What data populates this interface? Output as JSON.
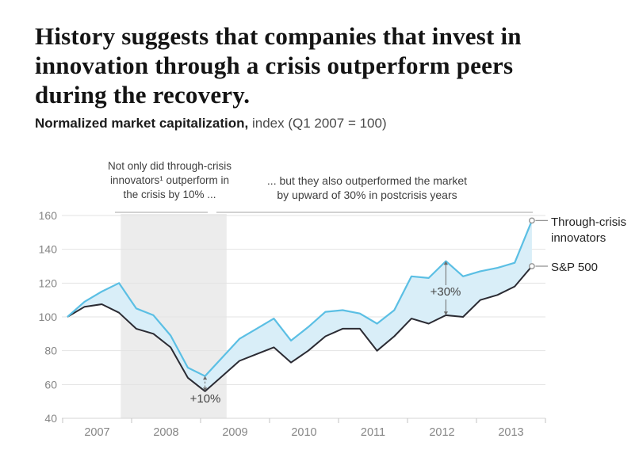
{
  "header": {
    "title_lines": [
      "History suggests that companies that invest in",
      "innovation through a crisis outperform peers",
      "during the recovery."
    ],
    "subtitle_bold": "Normalized market capitalization,",
    "subtitle_rest": " index (Q1 2007 = 100)"
  },
  "annotations": {
    "crisis": {
      "lines": [
        "Not only did through-crisis",
        "innovators¹ outperform in",
        "the crisis by 10% ..."
      ]
    },
    "postcrisis": {
      "lines": [
        "... but they also outperformed the market",
        "by upward of 30% in postcrisis years"
      ]
    }
  },
  "chart_data": {
    "type": "area",
    "title": "Normalized market capitalization",
    "unit": "index (Q1 2007 = 100)",
    "grid": true,
    "y_ticks": [
      40,
      60,
      80,
      100,
      120,
      140,
      160
    ],
    "ylim": [
      40,
      165
    ],
    "x_year_ticks": [
      "2007",
      "2008",
      "2009",
      "2010",
      "2011",
      "2012",
      "2013"
    ],
    "x_quarters": [
      "Q1 2007",
      "Q2 2007",
      "Q3 2007",
      "Q4 2007",
      "Q1 2008",
      "Q2 2008",
      "Q3 2008",
      "Q4 2008",
      "Q1 2009",
      "Q2 2009",
      "Q3 2009",
      "Q4 2009",
      "Q1 2010",
      "Q2 2010",
      "Q3 2010",
      "Q4 2010",
      "Q1 2011",
      "Q2 2011",
      "Q3 2011",
      "Q4 2011",
      "Q1 2012",
      "Q2 2012",
      "Q3 2012",
      "Q4 2012",
      "Q1 2013",
      "Q2 2013",
      "Q3 2013",
      "Q4 2013"
    ],
    "series": [
      {
        "name": "Through-crisis innovators",
        "color": "#5bbfe4",
        "values": [
          100,
          109,
          115,
          120,
          105,
          101,
          89,
          70,
          65,
          76,
          87,
          93,
          99,
          86,
          94,
          103,
          104,
          102,
          96,
          104,
          124,
          123,
          133,
          124,
          127,
          129,
          132,
          157
        ]
      },
      {
        "name": "S&P 500",
        "color": "#2b2b33",
        "values": [
          100,
          106,
          107.5,
          102.5,
          93,
          90,
          82,
          64,
          56,
          65,
          74,
          78,
          82,
          73,
          80,
          88.5,
          93,
          93,
          80,
          88.5,
          99,
          96,
          101,
          100,
          110,
          113,
          118,
          130
        ]
      }
    ],
    "area_fill": "#d9eef8",
    "crisis_band": {
      "from_quarter": "Q4 2007",
      "to_quarter": "Q2 2009",
      "from_q_index": 3.1,
      "to_q_index": 9.25,
      "color": "#ececec"
    },
    "callouts": [
      {
        "label": "+10%",
        "quarter": "Q1 2009",
        "from_value": 56,
        "to_value": 65,
        "style": "dashed"
      },
      {
        "label": "+30%",
        "quarter": "Q3 2012",
        "from_value": 101,
        "to_value": 133,
        "style": "solid"
      }
    ],
    "end_labels": [
      {
        "lines": [
          "Through-crisis",
          "innovators"
        ]
      },
      {
        "lines": [
          "S&P 500"
        ]
      }
    ],
    "colors": {
      "grid": "#e3e3e3",
      "axis": "#d6d6d6",
      "tick": "#c3c3c3",
      "axis_text": "#868686",
      "arrow": "#6b6b6b",
      "marker_stroke": "#949494"
    }
  }
}
